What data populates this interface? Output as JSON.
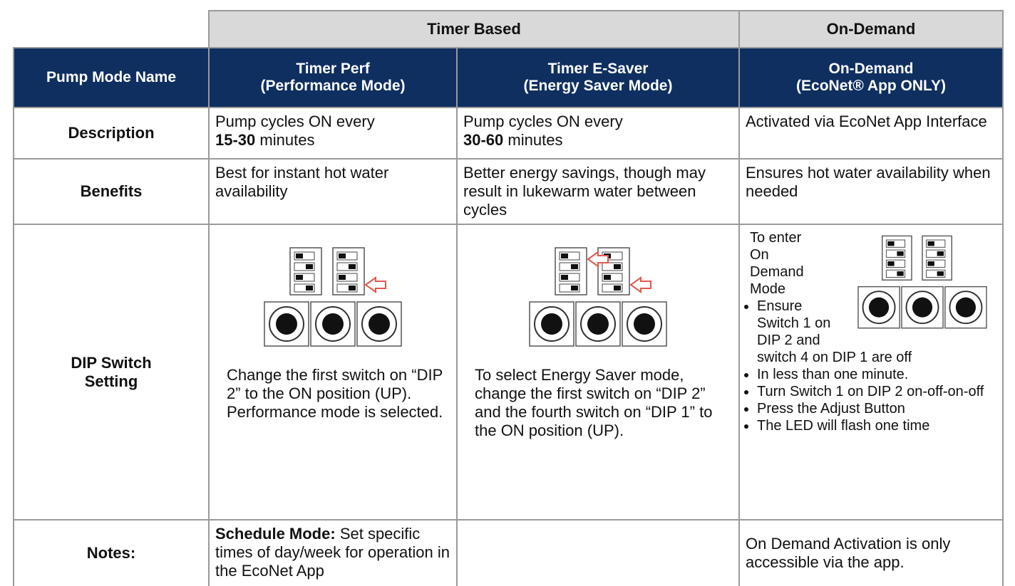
{
  "table": {
    "group_header": [
      "Timer Based",
      "On-Demand"
    ],
    "header": [
      "Pump Mode Name",
      [
        "Timer Perf",
        "(Performance Mode)"
      ],
      [
        "Timer E-Saver",
        "(Energy Saver Mode)"
      ],
      [
        "On-Demand",
        "(EcoNet® App ONLY)"
      ]
    ],
    "rows": {
      "description": {
        "label": "Description",
        "cells": [
          {
            "before": "Pump cycles ON every",
            "bold": "15-30",
            "after": "minutes"
          },
          {
            "before": "Pump cycles ON every",
            "bold": "30-60",
            "after": "minutes"
          },
          {
            "before": "Activated via EcoNet App Interface"
          }
        ]
      },
      "benefits": {
        "label": "Benefits",
        "cells": [
          "Best for instant hot water availability",
          "Better energy savings, though may result in lukewarm water between cycles",
          "Ensures hot water availability when needed"
        ]
      },
      "dip": {
        "label": "DIP Switch Setting",
        "cells": [
          "Change the first switch on “DIP 2” to the ON position (UP). Performance mode is selected.",
          "To select Energy Saver mode, change the first switch on “DIP 2” and the fourth switch on “DIP 1” to the ON position (UP).",
          {
            "intro": "To enter On Demand Mode",
            "steps": [
              "Ensure Switch 1 on DIP 2 and switch 4 on DIP 1 are off",
              "In less than one minute.",
              "Turn Switch 1 on DIP 2 on-off-on-off",
              "Press the Adjust Button",
              "The LED will flash one time"
            ]
          }
        ]
      },
      "notes": {
        "label": "Notes:",
        "cells": [
          {
            "bold": "Schedule Mode:",
            "text": "Set specific times of day/week for operation in the EcoNet App"
          },
          "",
          "On Demand Activation is only accessible via the app."
        ]
      }
    }
  }
}
